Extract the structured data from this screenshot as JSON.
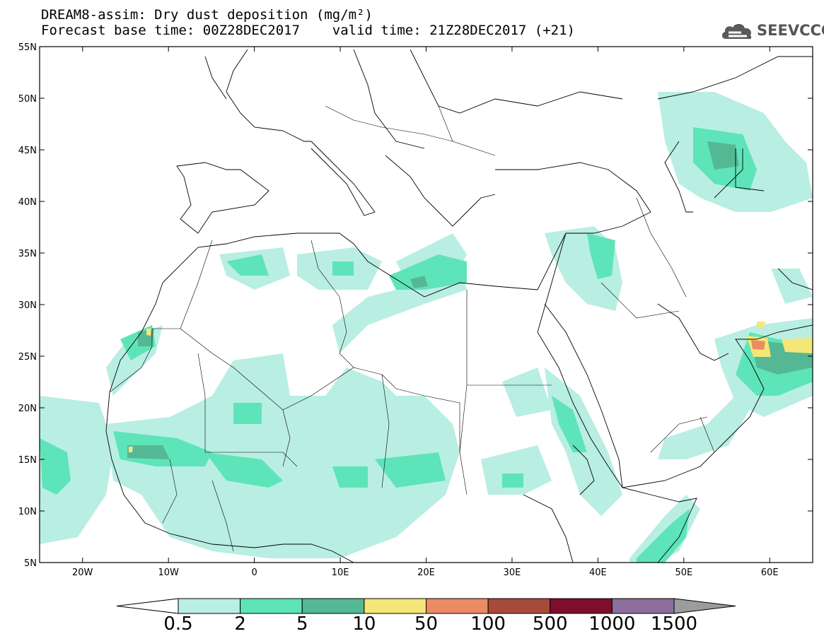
{
  "title": {
    "line1": "DREAM8-assim: Dry dust deposition (mg/m²)",
    "line2": "Forecast base time: 00Z28DEC2017    valid time: 21Z28DEC2017 (+21)"
  },
  "logo": {
    "text": "SEEVCCC",
    "icon": "cloud-icon"
  },
  "map": {
    "lon_range": [
      -25,
      65
    ],
    "lat_range": [
      5,
      55
    ],
    "x_ticks": [
      {
        "lon": -20,
        "label": "20W"
      },
      {
        "lon": -10,
        "label": "10W"
      },
      {
        "lon": 0,
        "label": "0"
      },
      {
        "lon": 10,
        "label": "10E"
      },
      {
        "lon": 20,
        "label": "20E"
      },
      {
        "lon": 30,
        "label": "30E"
      },
      {
        "lon": 40,
        "label": "40E"
      },
      {
        "lon": 50,
        "label": "50E"
      },
      {
        "lon": 60,
        "label": "60E"
      }
    ],
    "y_ticks": [
      {
        "lat": 55,
        "label": "55N"
      },
      {
        "lat": 50,
        "label": "50N"
      },
      {
        "lat": 45,
        "label": "45N"
      },
      {
        "lat": 40,
        "label": "40N"
      },
      {
        "lat": 35,
        "label": "35N"
      },
      {
        "lat": 30,
        "label": "30N"
      },
      {
        "lat": 25,
        "label": "25N"
      },
      {
        "lat": 20,
        "label": "20N"
      },
      {
        "lat": 15,
        "label": "15N"
      },
      {
        "lat": 10,
        "label": "10N"
      },
      {
        "lat": 5,
        "label": "5N"
      }
    ]
  },
  "colorbar": {
    "levels": [
      "0.5",
      "2",
      "5",
      "10",
      "50",
      "100",
      "500",
      "1000",
      "1500"
    ],
    "colors": [
      "#ffffff",
      "#b9eee3",
      "#5ee4b9",
      "#55b894",
      "#f4e677",
      "#eb8b63",
      "#a84a3b",
      "#7e0f2c",
      "#8d6e9c",
      "#9c9c9c"
    ]
  }
}
